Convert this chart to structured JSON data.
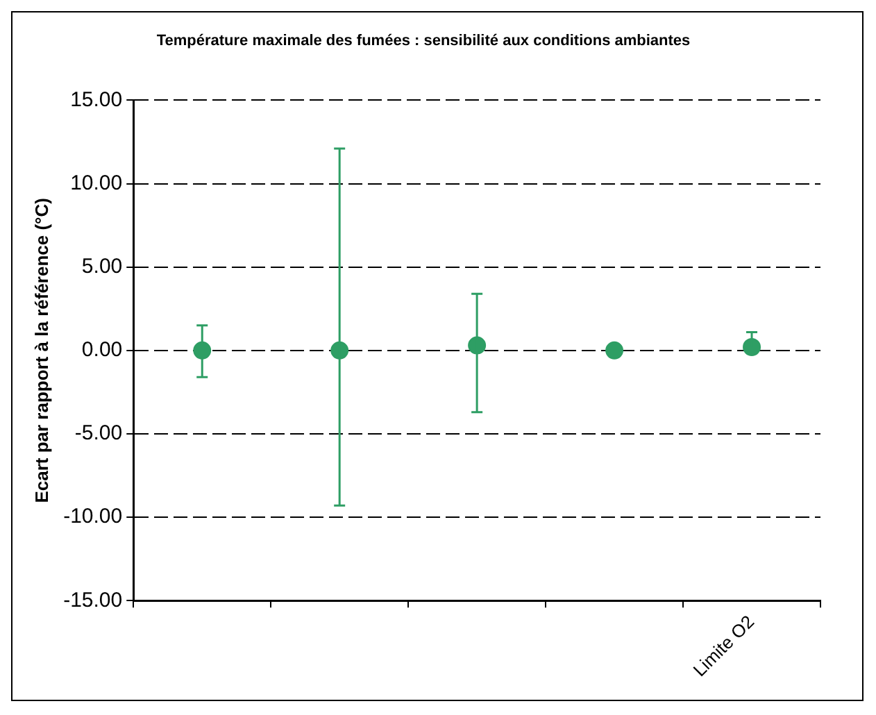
{
  "chart_data": {
    "type": "scatter",
    "title": "Température maximale des fumées : sensibilité aux conditions ambiantes",
    "ylabel": "Ecart par rapport à la référence (°C)",
    "categories": [
      null,
      null,
      null,
      null,
      "Limite O2"
    ],
    "values": [
      0,
      0,
      0.3,
      0,
      0.2
    ],
    "errors": [
      [
        -1.6,
        1.5
      ],
      [
        -9.3,
        12.1
      ],
      [
        -3.7,
        3.4
      ],
      null,
      [
        0.2,
        1.1
      ]
    ],
    "color": "#2e9e64",
    "marker": "circle",
    "ylim": [
      -15,
      15
    ],
    "yticks": [
      {
        "value": -15,
        "label": "-15.00"
      },
      {
        "value": -10,
        "label": "-10.00"
      },
      {
        "value": -5,
        "label": "-5.00"
      },
      {
        "value": 0,
        "label": "0.00"
      },
      {
        "value": 5,
        "label": "5.00"
      },
      {
        "value": 10,
        "label": "10.00"
      },
      {
        "value": 15,
        "label": "15.00"
      }
    ],
    "grid": "y"
  }
}
